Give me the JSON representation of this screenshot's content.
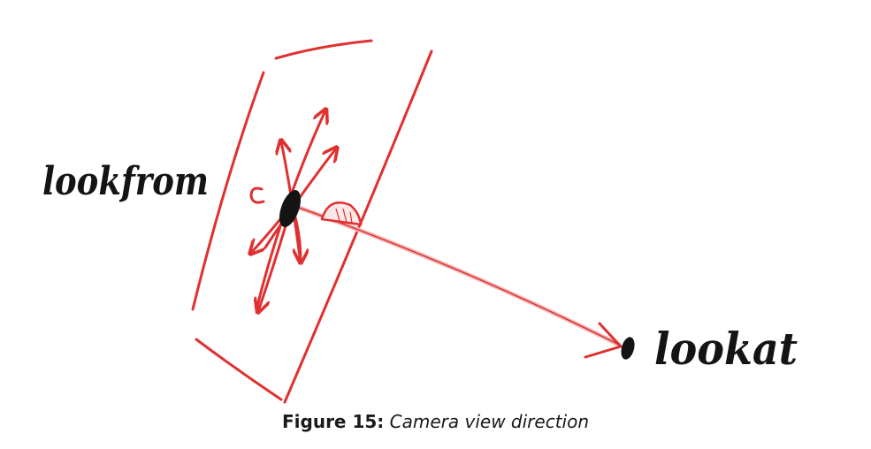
{
  "diagram": {
    "labels": {
      "from": "lookfrom",
      "to": "lookat"
    },
    "colors": {
      "stroke": "#e03030",
      "ink": "#141414",
      "view_ray": "#e88a8a"
    }
  },
  "caption": {
    "number": "Figure 15:",
    "title": "Camera view direction"
  }
}
